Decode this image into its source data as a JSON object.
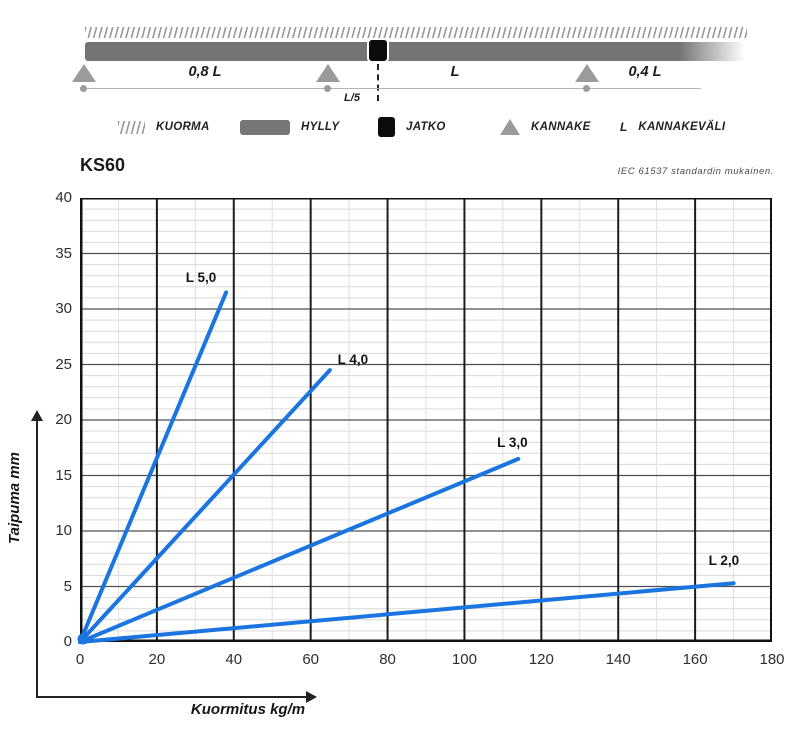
{
  "diagram": {
    "span1_label": "0,8 L",
    "span2_label": "L",
    "span3_label": "0,4 L",
    "joint_offset_label": "L/5"
  },
  "legend": {
    "items": [
      {
        "icon": "hatch",
        "label": "KUORMA"
      },
      {
        "icon": "shelf",
        "label": "HYLLY"
      },
      {
        "icon": "joint",
        "label": "JATKO"
      },
      {
        "icon": "support-triangle",
        "label": "KANNAKE"
      },
      {
        "icon": "letter",
        "symbol": "L",
        "label": "KANNAKEVÄLI"
      }
    ]
  },
  "chart": {
    "title": "KS60",
    "note": "IEC 61537 standardin mukainen.",
    "xlabel": "Kuormitus kg/m",
    "ylabel": "Taipuma mm"
  },
  "chart_data": {
    "type": "line",
    "title": "KS60",
    "xlabel": "Kuormitus kg/m",
    "ylabel": "Taipuma mm",
    "xlim": [
      0,
      180
    ],
    "ylim": [
      0,
      40
    ],
    "xticks": [
      0,
      20,
      40,
      60,
      80,
      100,
      120,
      140,
      160,
      180
    ],
    "yticks": [
      0,
      5,
      10,
      15,
      20,
      25,
      30,
      35,
      40
    ],
    "x_major_step": 20,
    "y_major_step": 5,
    "x_minor_step": 10,
    "y_minor_step": 1,
    "grid": true,
    "legend_position": "inline-labels",
    "line_color": "#1b75e0",
    "series": [
      {
        "name": "L 5,0",
        "points": [
          [
            0,
            0
          ],
          [
            38,
            31.5
          ]
        ],
        "label_pos": [
          27.5,
          32.2
        ]
      },
      {
        "name": "L 4,0",
        "points": [
          [
            0,
            0
          ],
          [
            65,
            24.5
          ]
        ],
        "label_pos": [
          67,
          24.8
        ]
      },
      {
        "name": "L 3,0",
        "points": [
          [
            0,
            0
          ],
          [
            114,
            16.5
          ]
        ],
        "label_pos": [
          108.5,
          17.3
        ]
      },
      {
        "name": "L 2,0",
        "points": [
          [
            0,
            0
          ],
          [
            170,
            5.3
          ]
        ],
        "label_pos": [
          163.5,
          6.7
        ]
      }
    ]
  }
}
